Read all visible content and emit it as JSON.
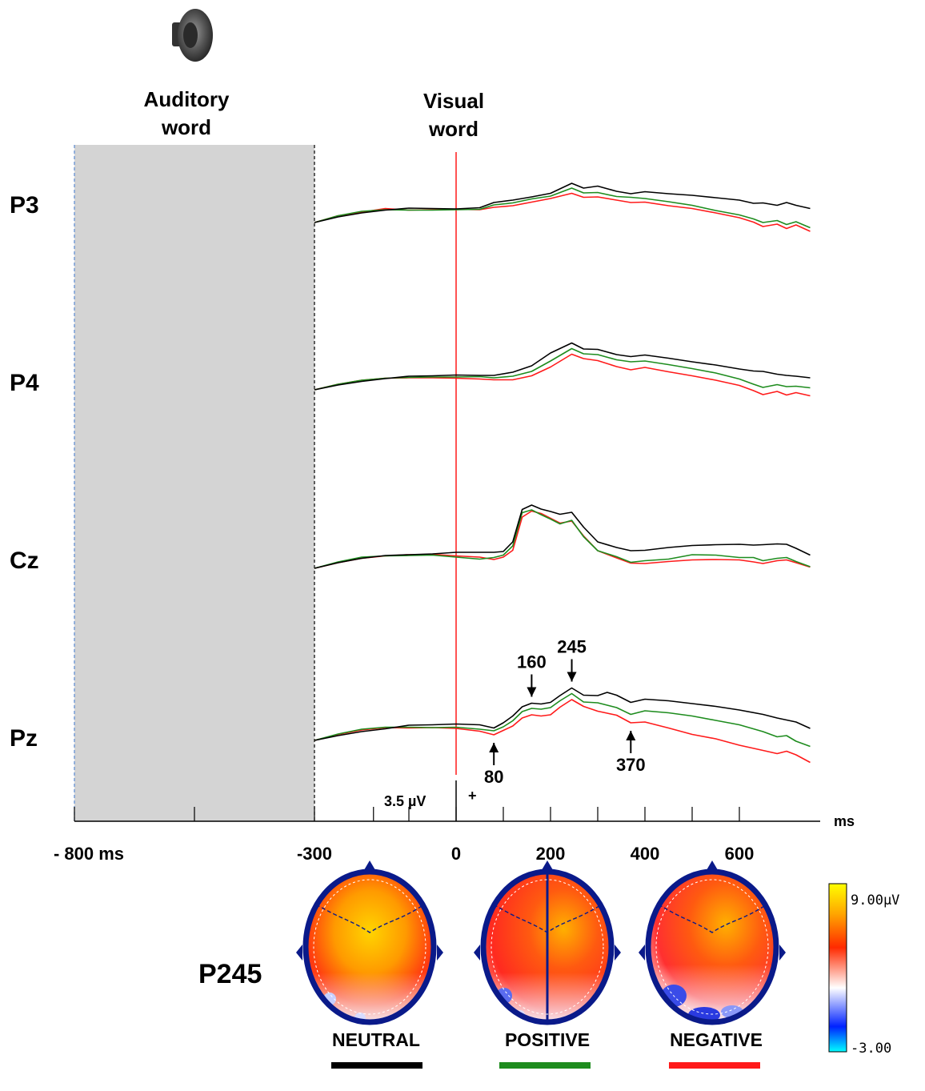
{
  "chart_data": {
    "type": "line",
    "stimulus_labels": {
      "auditory": [
        "Auditory",
        "word"
      ],
      "visual": [
        "Visual",
        "word"
      ]
    },
    "channels": [
      "P3",
      "P4",
      "Cz",
      "Pz"
    ],
    "x_ticks": [
      {
        "value": -800,
        "label": "- 800 ms"
      },
      {
        "value": -300,
        "label": "-300"
      },
      {
        "value": 0,
        "label": "0"
      },
      {
        "value": 200,
        "label": "200"
      },
      {
        "value": 400,
        "label": "400"
      },
      {
        "value": 600,
        "label": "600"
      }
    ],
    "x_unit": "ms",
    "xlim": [
      -800,
      755
    ],
    "scale_bar": {
      "label": "3.5 µV",
      "polarity": "+"
    },
    "peak_annotations": [
      {
        "value": 80,
        "label": "80"
      },
      {
        "value": 160,
        "label": "160"
      },
      {
        "value": 245,
        "label": "245"
      },
      {
        "value": 370,
        "label": "370"
      }
    ],
    "series": [
      {
        "name": "NEUTRAL",
        "color": "#000000"
      },
      {
        "name": "POSITIVE",
        "color": "#1e8c1e"
      },
      {
        "name": "NEGATIVE",
        "color": "#ff1a1a"
      }
    ],
    "waveforms": {
      "P3": {
        "x": [
          -300,
          -250,
          -200,
          -150,
          -100,
          -50,
          0,
          50,
          80,
          120,
          160,
          200,
          245,
          270,
          300,
          340,
          370,
          400,
          450,
          500,
          550,
          600,
          630,
          650,
          680,
          700,
          720,
          750
        ],
        "NEUTRAL": [
          -2.0,
          -0.6,
          0.4,
          1.1,
          1.6,
          1.5,
          1.4,
          1.7,
          3.0,
          3.6,
          4.4,
          5.3,
          7.8,
          6.6,
          7.1,
          5.8,
          5.2,
          5.7,
          5.2,
          4.8,
          4.2,
          3.6,
          2.8,
          2.9,
          2.3,
          3.0,
          2.3,
          1.5
        ],
        "POSITIVE": [
          -2.0,
          -0.3,
          0.8,
          1.2,
          1.1,
          1.1,
          1.2,
          1.3,
          2.4,
          2.9,
          3.9,
          4.6,
          6.6,
          5.4,
          5.5,
          4.5,
          4.3,
          4.0,
          3.2,
          2.3,
          1.0,
          -0.1,
          -1.1,
          -2.0,
          -1.5,
          -2.5,
          -1.8,
          -3.3
        ],
        "NEGATIVE": [
          -2.0,
          -0.3,
          0.6,
          1.5,
          1.1,
          1.2,
          1.3,
          1.2,
          1.8,
          2.2,
          3.1,
          4.0,
          5.3,
          4.3,
          4.4,
          3.6,
          3.0,
          3.1,
          2.2,
          1.5,
          0.4,
          -0.8,
          -1.9,
          -3.0,
          -2.4,
          -3.5,
          -2.6,
          -4.2
        ]
      },
      "P4": {
        "x": [
          -300,
          -250,
          -200,
          -150,
          -100,
          -50,
          0,
          50,
          80,
          120,
          160,
          200,
          245,
          270,
          300,
          340,
          370,
          400,
          450,
          500,
          550,
          600,
          630,
          650,
          680,
          700,
          720,
          750
        ],
        "NEUTRAL": [
          -2.0,
          -0.8,
          0.1,
          0.8,
          1.4,
          1.5,
          1.7,
          1.6,
          1.6,
          2.4,
          4.0,
          7.2,
          9.7,
          8.2,
          8.1,
          6.8,
          6.3,
          6.7,
          5.9,
          5.0,
          4.2,
          3.2,
          2.7,
          2.6,
          1.9,
          1.6,
          1.4,
          1.0
        ],
        "POSITIVE": [
          -2.0,
          -0.6,
          0.4,
          0.9,
          1.1,
          1.2,
          1.2,
          1.3,
          1.0,
          1.4,
          2.6,
          5.2,
          8.3,
          7.0,
          6.8,
          5.5,
          5.0,
          5.2,
          4.3,
          3.3,
          2.2,
          0.7,
          -0.6,
          -1.4,
          -0.7,
          -1.2,
          -1.1,
          -1.5
        ],
        "NEGATIVE": [
          -2.0,
          -0.6,
          0.4,
          0.9,
          1.0,
          1.0,
          0.9,
          0.7,
          0.5,
          0.5,
          1.5,
          3.7,
          6.9,
          5.8,
          5.3,
          3.8,
          3.0,
          3.6,
          2.5,
          1.5,
          0.4,
          -0.9,
          -2.2,
          -3.2,
          -2.4,
          -3.3,
          -2.7,
          -3.5
        ]
      },
      "Cz": {
        "x": [
          -300,
          -250,
          -200,
          -150,
          -100,
          -50,
          0,
          50,
          80,
          100,
          120,
          140,
          160,
          180,
          200,
          220,
          245,
          270,
          300,
          340,
          370,
          400,
          450,
          500,
          550,
          600,
          630,
          650,
          680,
          700,
          720,
          750
        ],
        "NEUTRAL": [
          -2.0,
          -0.6,
          0.5,
          1.2,
          1.4,
          1.6,
          2.0,
          2.0,
          2.0,
          2.2,
          4.6,
          12.7,
          13.8,
          12.8,
          12.2,
          11.5,
          12.0,
          8.3,
          4.6,
          3.2,
          2.4,
          2.5,
          3.2,
          3.7,
          3.9,
          4.0,
          3.8,
          3.9,
          4.1,
          4.0,
          3.0,
          1.3
        ],
        "POSITIVE": [
          -2.0,
          -0.4,
          0.8,
          1.1,
          1.2,
          1.3,
          0.8,
          0.3,
          0.7,
          1.3,
          3.6,
          11.9,
          12.6,
          11.4,
          10.3,
          9.1,
          10.0,
          5.9,
          2.4,
          0.9,
          -0.5,
          -0.1,
          0.3,
          1.4,
          1.3,
          0.7,
          0.7,
          -0.1,
          0.5,
          0.7,
          -0.3,
          -1.6
        ],
        "NEGATIVE": [
          -2.0,
          -0.6,
          0.5,
          1.1,
          1.4,
          1.5,
          1.1,
          0.8,
          0.2,
          0.8,
          2.5,
          10.8,
          12.3,
          11.7,
          10.5,
          9.3,
          9.8,
          6.1,
          2.4,
          0.6,
          -0.7,
          -0.8,
          -0.3,
          0.1,
          0.2,
          0.1,
          -0.4,
          -0.8,
          -0.1,
          0.1,
          -0.6,
          -1.7
        ]
      },
      "Pz": {
        "x": [
          -300,
          -250,
          -200,
          -150,
          -100,
          -50,
          0,
          50,
          80,
          100,
          120,
          140,
          160,
          180,
          200,
          220,
          245,
          270,
          300,
          320,
          340,
          370,
          400,
          450,
          500,
          550,
          600,
          650,
          680,
          700,
          720,
          750
        ],
        "NEUTRAL": [
          -2.0,
          -0.8,
          0.2,
          0.9,
          1.8,
          1.9,
          2.1,
          1.9,
          1.1,
          2.4,
          4.1,
          6.4,
          7.3,
          7.1,
          7.5,
          9.2,
          11.1,
          9.3,
          9.2,
          10.0,
          9.3,
          7.5,
          8.3,
          7.9,
          7.2,
          6.5,
          5.6,
          4.5,
          3.6,
          3.1,
          2.6,
          1.0
        ],
        "POSITIVE": [
          -2.0,
          -0.4,
          0.8,
          1.3,
          1.3,
          1.2,
          1.3,
          0.8,
          0.4,
          1.4,
          2.9,
          5.2,
          6.0,
          5.8,
          6.2,
          7.9,
          9.7,
          7.6,
          7.4,
          6.8,
          6.2,
          4.5,
          5.4,
          4.9,
          4.1,
          3.0,
          1.9,
          0.2,
          -1.1,
          -0.8,
          -2.2,
          -3.5
        ],
        "NEGATIVE": [
          -2.0,
          -0.5,
          0.6,
          1.2,
          1.1,
          1.2,
          1.0,
          0.3,
          -0.6,
          0.5,
          1.6,
          3.6,
          4.4,
          4.1,
          4.4,
          6.3,
          8.2,
          6.5,
          5.3,
          4.8,
          4.3,
          2.4,
          2.6,
          1.1,
          -0.5,
          -1.6,
          -3.2,
          -4.5,
          -5.3,
          -4.7,
          -5.6,
          -7.5
        ]
      }
    },
    "topomaps": {
      "component_label": "P245",
      "maps": [
        "NEUTRAL",
        "POSITIVE",
        "NEGATIVE"
      ],
      "colorbar": {
        "max_label": "9.00µV",
        "min_label": "-3.00",
        "colors": [
          "#ffff00",
          "#ffa500",
          "#ff2a00",
          "#ffffff",
          "#0022ff",
          "#00ffff"
        ]
      }
    }
  }
}
